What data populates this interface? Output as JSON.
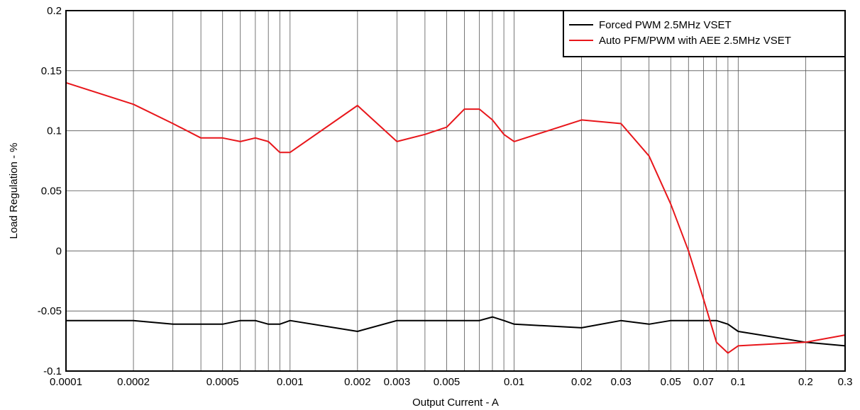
{
  "chart_data": {
    "type": "line",
    "title": "",
    "xlabel": "Output Current - A",
    "ylabel": "Load Regulation - %",
    "xscale": "log",
    "xlim": [
      0.0001,
      0.3
    ],
    "ylim": [
      -0.1,
      0.2
    ],
    "grid": true,
    "legend_position": "top-right",
    "x_tick_labels": [
      {
        "value": 0.0001,
        "label": "0.0001"
      },
      {
        "value": 0.0002,
        "label": "0.0002"
      },
      {
        "value": 0.0005,
        "label": "0.0005"
      },
      {
        "value": 0.001,
        "label": "0.001"
      },
      {
        "value": 0.002,
        "label": "0.002"
      },
      {
        "value": 0.003,
        "label": "0.003"
      },
      {
        "value": 0.005,
        "label": "0.005"
      },
      {
        "value": 0.01,
        "label": "0.01"
      },
      {
        "value": 0.02,
        "label": "0.02"
      },
      {
        "value": 0.03,
        "label": "0.03"
      },
      {
        "value": 0.05,
        "label": "0.05"
      },
      {
        "value": 0.07,
        "label": "0.07"
      },
      {
        "value": 0.1,
        "label": "0.1"
      },
      {
        "value": 0.2,
        "label": "0.2"
      },
      {
        "value": 0.3,
        "label": "0.3"
      }
    ],
    "y_tick_labels": [
      {
        "value": 0.2,
        "label": "0.2"
      },
      {
        "value": 0.15,
        "label": "0.15"
      },
      {
        "value": 0.1,
        "label": "0.1"
      },
      {
        "value": 0.05,
        "label": "0.05"
      },
      {
        "value": 0,
        "label": "0"
      },
      {
        "value": -0.05,
        "label": "-0.05"
      },
      {
        "value": -0.1,
        "label": "-0.1"
      }
    ],
    "series": [
      {
        "name": "Forced PWM 2.5MHz VSET",
        "color": "#000000",
        "x": [
          0.0001,
          0.0002,
          0.0003,
          0.0004,
          0.0005,
          0.0006,
          0.0007,
          0.0008,
          0.0009,
          0.001,
          0.002,
          0.003,
          0.004,
          0.005,
          0.006,
          0.007,
          0.008,
          0.009,
          0.01,
          0.02,
          0.03,
          0.04,
          0.05,
          0.06,
          0.07,
          0.08,
          0.09,
          0.1,
          0.2,
          0.3
        ],
        "y": [
          -0.058,
          -0.058,
          -0.061,
          -0.061,
          -0.061,
          -0.058,
          -0.058,
          -0.061,
          -0.061,
          -0.058,
          -0.067,
          -0.058,
          -0.058,
          -0.058,
          -0.058,
          -0.058,
          -0.055,
          -0.058,
          -0.061,
          -0.064,
          -0.058,
          -0.061,
          -0.058,
          -0.058,
          -0.058,
          -0.058,
          -0.061,
          -0.067,
          -0.076,
          -0.079
        ]
      },
      {
        "name": "Auto PFM/PWM with AEE 2.5MHz VSET",
        "color": "#e8161b",
        "x": [
          0.0001,
          0.0002,
          0.0003,
          0.0004,
          0.0005,
          0.0006,
          0.0007,
          0.0008,
          0.0009,
          0.001,
          0.002,
          0.003,
          0.004,
          0.005,
          0.006,
          0.007,
          0.008,
          0.009,
          0.01,
          0.02,
          0.03,
          0.04,
          0.05,
          0.06,
          0.07,
          0.08,
          0.09,
          0.1,
          0.2,
          0.3
        ],
        "y": [
          0.14,
          0.122,
          0.106,
          0.094,
          0.094,
          0.091,
          0.094,
          0.091,
          0.082,
          0.082,
          0.121,
          0.091,
          0.097,
          0.103,
          0.118,
          0.118,
          0.109,
          0.097,
          0.091,
          0.109,
          0.106,
          0.079,
          0.039,
          0.0,
          -0.04,
          -0.076,
          -0.085,
          -0.079,
          -0.076,
          -0.07
        ]
      }
    ]
  }
}
